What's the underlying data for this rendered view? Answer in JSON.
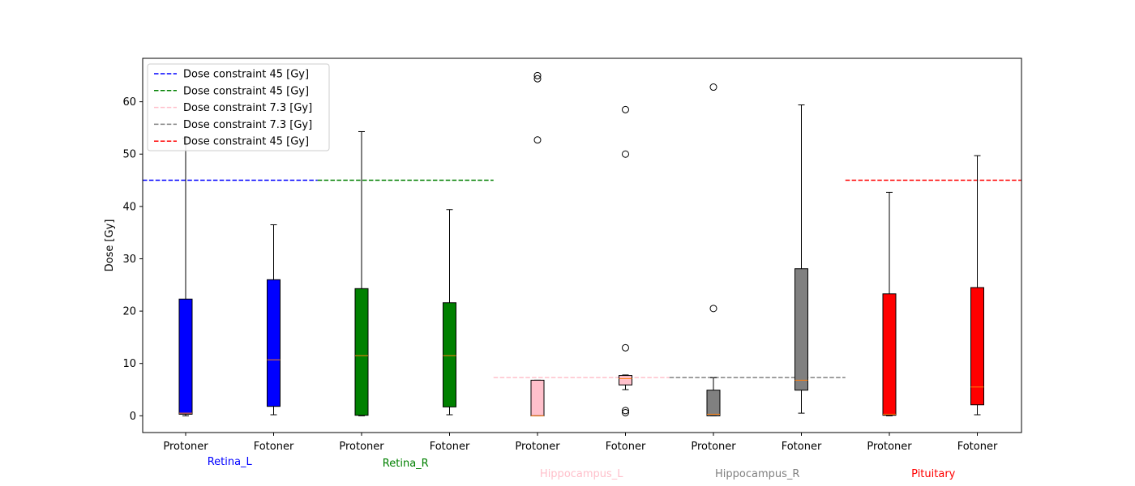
{
  "chart_data": {
    "type": "box",
    "ylabel": "Dose [Gy]",
    "ylim": [
      -3.2,
      68.3
    ],
    "yticks": [
      0,
      10,
      20,
      30,
      40,
      50,
      60
    ],
    "grid": false,
    "legend_position": "upper-left",
    "categories": [
      "Protoner",
      "Fotoner",
      "Protoner",
      "Fotoner",
      "Protoner",
      "Fotoner",
      "Protoner",
      "Fotoner",
      "Protoner",
      "Fotoner"
    ],
    "groups": [
      {
        "label": "Retina_L",
        "color": "#0000ff",
        "constraint": 45
      },
      {
        "label": "Retina_R",
        "color": "#008000",
        "constraint": 45
      },
      {
        "label": "Hippocampus_L",
        "color": "#ffc0cb",
        "constraint": 7.3
      },
      {
        "label": "Hippocampus_R",
        "color": "#808080",
        "constraint": 7.3
      },
      {
        "label": "Pituitary",
        "color": "#ff0000",
        "constraint": 45
      }
    ],
    "legend": [
      {
        "label": "Dose constraint  45 [Gy]",
        "color": "#0000ff"
      },
      {
        "label": "Dose constraint  45 [Gy]",
        "color": "#008000"
      },
      {
        "label": "Dose constraint  7.3 [Gy]",
        "color": "#ffc0cb"
      },
      {
        "label": "Dose constraint  7.3 [Gy]",
        "color": "#808080"
      },
      {
        "label": "Dose constraint  45 [Gy]",
        "color": "#ff0000"
      }
    ],
    "boxes": [
      {
        "group": 0,
        "label": "Protoner",
        "whislo": 0.0,
        "q1": 0.3,
        "med": 0.5,
        "q3": 22.3,
        "whishi": 53.0,
        "fliers": []
      },
      {
        "group": 0,
        "label": "Fotoner",
        "whislo": 0.2,
        "q1": 1.8,
        "med": 10.7,
        "q3": 26.0,
        "whishi": 36.5,
        "fliers": []
      },
      {
        "group": 1,
        "label": "Protoner",
        "whislo": 0.0,
        "q1": 0.1,
        "med": 11.5,
        "q3": 24.3,
        "whishi": 54.3,
        "fliers": []
      },
      {
        "group": 1,
        "label": "Fotoner",
        "whislo": 0.2,
        "q1": 1.7,
        "med": 11.5,
        "q3": 21.6,
        "whishi": 39.4,
        "fliers": []
      },
      {
        "group": 2,
        "label": "Protoner",
        "whislo": 0.0,
        "q1": 0.0,
        "med": 0.0,
        "q3": 6.8,
        "whishi": 6.8,
        "fliers": [
          52.7,
          64.4,
          65.0
        ]
      },
      {
        "group": 2,
        "label": "Fotoner",
        "whislo": 5.0,
        "q1": 5.9,
        "med": 7.1,
        "q3": 7.7,
        "whishi": 7.8,
        "fliers": [
          0.6,
          1.0,
          13.0,
          50.0,
          58.5
        ]
      },
      {
        "group": 3,
        "label": "Protoner",
        "whislo": 0.0,
        "q1": 0.0,
        "med": 0.3,
        "q3": 4.9,
        "whishi": 7.3,
        "fliers": [
          20.5,
          62.8
        ]
      },
      {
        "group": 3,
        "label": "Fotoner",
        "whislo": 0.5,
        "q1": 4.9,
        "med": 6.8,
        "q3": 28.1,
        "whishi": 59.4,
        "fliers": []
      },
      {
        "group": 4,
        "label": "Protoner",
        "whislo": 0.0,
        "q1": 0.1,
        "med": 0.3,
        "q3": 23.3,
        "whishi": 42.7,
        "fliers": []
      },
      {
        "group": 4,
        "label": "Fotoner",
        "whislo": 0.2,
        "q1": 2.1,
        "med": 5.5,
        "q3": 24.5,
        "whishi": 49.7,
        "fliers": []
      }
    ]
  }
}
